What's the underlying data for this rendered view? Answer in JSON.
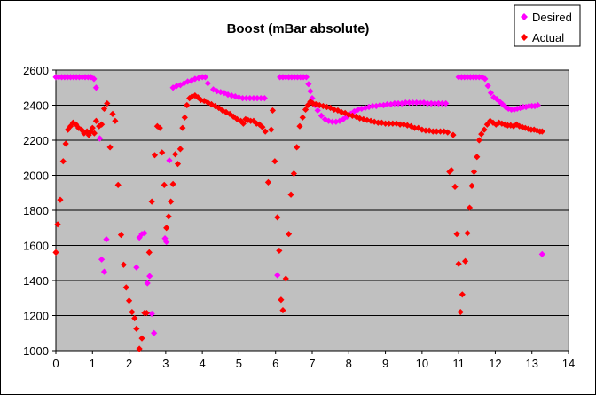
{
  "chart_data": {
    "type": "scatter",
    "title": "Boost (mBar absolute)",
    "xlabel": "",
    "ylabel": "",
    "xlim": [
      0,
      14
    ],
    "ylim": [
      1000,
      2600
    ],
    "x_ticks": [
      0,
      1,
      2,
      3,
      4,
      5,
      6,
      7,
      8,
      9,
      10,
      11,
      12,
      13,
      14
    ],
    "y_ticks": [
      1000,
      1200,
      1400,
      1600,
      1800,
      2000,
      2200,
      2400,
      2600
    ],
    "grid": "horizontal",
    "plot_background": "#c0c0c0",
    "legend_placement": "top-right",
    "series": [
      {
        "name": "Desired",
        "color": "#ff00ff",
        "marker": "diamond",
        "points": [
          [
            0.0,
            2560
          ],
          [
            0.08,
            2560
          ],
          [
            0.16,
            2560
          ],
          [
            0.24,
            2560
          ],
          [
            0.32,
            2560
          ],
          [
            0.4,
            2560
          ],
          [
            0.48,
            2560
          ],
          [
            0.56,
            2560
          ],
          [
            0.64,
            2560
          ],
          [
            0.72,
            2560
          ],
          [
            0.8,
            2560
          ],
          [
            0.88,
            2560
          ],
          [
            0.96,
            2560
          ],
          [
            1.04,
            2550
          ],
          [
            1.1,
            2500
          ],
          [
            1.2,
            2210
          ],
          [
            1.25,
            1520
          ],
          [
            1.32,
            1450
          ],
          [
            1.38,
            1635
          ],
          [
            2.2,
            1475
          ],
          [
            2.28,
            1645
          ],
          [
            2.35,
            1665
          ],
          [
            2.42,
            1670
          ],
          [
            2.5,
            1385
          ],
          [
            2.56,
            1425
          ],
          [
            2.62,
            1210
          ],
          [
            2.68,
            1100
          ],
          [
            2.98,
            1640
          ],
          [
            3.02,
            1620
          ],
          [
            3.1,
            2085
          ],
          [
            3.2,
            2500
          ],
          [
            3.3,
            2510
          ],
          [
            3.4,
            2515
          ],
          [
            3.5,
            2525
          ],
          [
            3.6,
            2535
          ],
          [
            3.7,
            2540
          ],
          [
            3.8,
            2550
          ],
          [
            3.9,
            2555
          ],
          [
            4.0,
            2560
          ],
          [
            4.08,
            2560
          ],
          [
            4.15,
            2525
          ],
          [
            4.3,
            2490
          ],
          [
            4.4,
            2480
          ],
          [
            4.5,
            2475
          ],
          [
            4.6,
            2470
          ],
          [
            4.7,
            2460
          ],
          [
            4.8,
            2455
          ],
          [
            4.9,
            2450
          ],
          [
            5.0,
            2445
          ],
          [
            5.1,
            2440
          ],
          [
            5.2,
            2440
          ],
          [
            5.3,
            2440
          ],
          [
            5.4,
            2440
          ],
          [
            5.5,
            2440
          ],
          [
            5.6,
            2440
          ],
          [
            5.7,
            2440
          ],
          [
            6.05,
            1430
          ],
          [
            6.12,
            2560
          ],
          [
            6.2,
            2560
          ],
          [
            6.28,
            2560
          ],
          [
            6.36,
            2560
          ],
          [
            6.44,
            2560
          ],
          [
            6.52,
            2560
          ],
          [
            6.6,
            2560
          ],
          [
            6.68,
            2560
          ],
          [
            6.76,
            2560
          ],
          [
            6.84,
            2560
          ],
          [
            6.9,
            2520
          ],
          [
            6.95,
            2480
          ],
          [
            7.0,
            2440
          ],
          [
            7.08,
            2400
          ],
          [
            7.15,
            2370
          ],
          [
            7.25,
            2340
          ],
          [
            7.35,
            2320
          ],
          [
            7.45,
            2310
          ],
          [
            7.55,
            2305
          ],
          [
            7.65,
            2305
          ],
          [
            7.75,
            2310
          ],
          [
            7.85,
            2320
          ],
          [
            7.95,
            2335
          ],
          [
            8.05,
            2350
          ],
          [
            8.15,
            2365
          ],
          [
            8.25,
            2375
          ],
          [
            8.35,
            2380
          ],
          [
            8.45,
            2385
          ],
          [
            8.55,
            2390
          ],
          [
            8.65,
            2395
          ],
          [
            8.75,
            2395
          ],
          [
            8.85,
            2400
          ],
          [
            8.95,
            2400
          ],
          [
            9.05,
            2405
          ],
          [
            9.15,
            2405
          ],
          [
            9.25,
            2410
          ],
          [
            9.35,
            2410
          ],
          [
            9.45,
            2410
          ],
          [
            9.55,
            2415
          ],
          [
            9.65,
            2415
          ],
          [
            9.75,
            2415
          ],
          [
            9.85,
            2415
          ],
          [
            9.95,
            2415
          ],
          [
            10.05,
            2415
          ],
          [
            10.15,
            2410
          ],
          [
            10.25,
            2410
          ],
          [
            10.35,
            2410
          ],
          [
            10.45,
            2410
          ],
          [
            10.55,
            2410
          ],
          [
            10.65,
            2410
          ],
          [
            11.0,
            2560
          ],
          [
            11.08,
            2560
          ],
          [
            11.16,
            2560
          ],
          [
            11.24,
            2560
          ],
          [
            11.32,
            2560
          ],
          [
            11.4,
            2560
          ],
          [
            11.48,
            2560
          ],
          [
            11.56,
            2560
          ],
          [
            11.64,
            2560
          ],
          [
            11.72,
            2550
          ],
          [
            11.8,
            2510
          ],
          [
            11.88,
            2470
          ],
          [
            11.96,
            2445
          ],
          [
            12.04,
            2435
          ],
          [
            12.12,
            2420
          ],
          [
            12.2,
            2405
          ],
          [
            12.28,
            2390
          ],
          [
            12.36,
            2380
          ],
          [
            12.44,
            2375
          ],
          [
            12.52,
            2375
          ],
          [
            12.6,
            2380
          ],
          [
            12.68,
            2385
          ],
          [
            12.76,
            2390
          ],
          [
            12.84,
            2390
          ],
          [
            12.92,
            2395
          ],
          [
            13.0,
            2395
          ],
          [
            13.08,
            2395
          ],
          [
            13.16,
            2400
          ],
          [
            13.28,
            1550
          ]
        ]
      },
      {
        "name": "Actual",
        "color": "#ff0000",
        "marker": "diamond",
        "points": [
          [
            0.0,
            1560
          ],
          [
            0.05,
            1720
          ],
          [
            0.12,
            1860
          ],
          [
            0.2,
            2080
          ],
          [
            0.27,
            2180
          ],
          [
            0.33,
            2260
          ],
          [
            0.4,
            2280
          ],
          [
            0.47,
            2300
          ],
          [
            0.55,
            2290
          ],
          [
            0.62,
            2270
          ],
          [
            0.7,
            2260
          ],
          [
            0.77,
            2240
          ],
          [
            0.85,
            2250
          ],
          [
            0.9,
            2230
          ],
          [
            0.95,
            2250
          ],
          [
            1.0,
            2270
          ],
          [
            1.05,
            2240
          ],
          [
            1.1,
            2310
          ],
          [
            1.18,
            2280
          ],
          [
            1.25,
            2290
          ],
          [
            1.32,
            2380
          ],
          [
            1.4,
            2410
          ],
          [
            1.48,
            2160
          ],
          [
            1.55,
            2350
          ],
          [
            1.62,
            2310
          ],
          [
            1.7,
            1945
          ],
          [
            1.78,
            1660
          ],
          [
            1.85,
            1490
          ],
          [
            1.92,
            1360
          ],
          [
            2.0,
            1285
          ],
          [
            2.08,
            1220
          ],
          [
            2.15,
            1185
          ],
          [
            2.2,
            1125
          ],
          [
            2.28,
            1010
          ],
          [
            2.35,
            1070
          ],
          [
            2.42,
            1215
          ],
          [
            2.48,
            1215
          ],
          [
            2.55,
            1560
          ],
          [
            2.62,
            1850
          ],
          [
            2.7,
            2115
          ],
          [
            2.77,
            2280
          ],
          [
            2.84,
            2270
          ],
          [
            2.9,
            2130
          ],
          [
            2.96,
            1945
          ],
          [
            3.02,
            1700
          ],
          [
            3.08,
            1765
          ],
          [
            3.14,
            1850
          ],
          [
            3.2,
            1950
          ],
          [
            3.26,
            2120
          ],
          [
            3.33,
            2065
          ],
          [
            3.4,
            2150
          ],
          [
            3.46,
            2270
          ],
          [
            3.52,
            2330
          ],
          [
            3.58,
            2400
          ],
          [
            3.65,
            2440
          ],
          [
            3.72,
            2450
          ],
          [
            3.8,
            2455
          ],
          [
            3.88,
            2445
          ],
          [
            3.96,
            2430
          ],
          [
            4.05,
            2425
          ],
          [
            4.15,
            2415
          ],
          [
            4.25,
            2405
          ],
          [
            4.35,
            2395
          ],
          [
            4.45,
            2385
          ],
          [
            4.55,
            2370
          ],
          [
            4.65,
            2360
          ],
          [
            4.75,
            2350
          ],
          [
            4.85,
            2335
          ],
          [
            4.95,
            2320
          ],
          [
            5.05,
            2310
          ],
          [
            5.12,
            2295
          ],
          [
            5.18,
            2320
          ],
          [
            5.25,
            2315
          ],
          [
            5.32,
            2310
          ],
          [
            5.4,
            2310
          ],
          [
            5.48,
            2295
          ],
          [
            5.56,
            2290
          ],
          [
            5.64,
            2275
          ],
          [
            5.72,
            2250
          ],
          [
            5.8,
            1960
          ],
          [
            5.88,
            2260
          ],
          [
            5.92,
            2370
          ],
          [
            5.98,
            2080
          ],
          [
            6.05,
            1760
          ],
          [
            6.1,
            1570
          ],
          [
            6.15,
            1290
          ],
          [
            6.2,
            1230
          ],
          [
            6.28,
            1410
          ],
          [
            6.36,
            1665
          ],
          [
            6.42,
            1890
          ],
          [
            6.5,
            2010
          ],
          [
            6.58,
            2160
          ],
          [
            6.66,
            2280
          ],
          [
            6.74,
            2330
          ],
          [
            6.82,
            2375
          ],
          [
            6.88,
            2400
          ],
          [
            6.95,
            2420
          ],
          [
            7.02,
            2410
          ],
          [
            7.1,
            2405
          ],
          [
            7.2,
            2400
          ],
          [
            7.3,
            2395
          ],
          [
            7.4,
            2390
          ],
          [
            7.5,
            2385
          ],
          [
            7.6,
            2375
          ],
          [
            7.7,
            2370
          ],
          [
            7.8,
            2360
          ],
          [
            7.9,
            2355
          ],
          [
            8.0,
            2345
          ],
          [
            8.1,
            2340
          ],
          [
            8.2,
            2335
          ],
          [
            8.3,
            2325
          ],
          [
            8.4,
            2320
          ],
          [
            8.5,
            2315
          ],
          [
            8.6,
            2310
          ],
          [
            8.7,
            2305
          ],
          [
            8.8,
            2300
          ],
          [
            8.9,
            2300
          ],
          [
            9.0,
            2295
          ],
          [
            9.1,
            2295
          ],
          [
            9.2,
            2295
          ],
          [
            9.3,
            2295
          ],
          [
            9.4,
            2290
          ],
          [
            9.5,
            2290
          ],
          [
            9.6,
            2285
          ],
          [
            9.7,
            2280
          ],
          [
            9.8,
            2270
          ],
          [
            9.9,
            2270
          ],
          [
            10.0,
            2260
          ],
          [
            10.1,
            2255
          ],
          [
            10.2,
            2255
          ],
          [
            10.3,
            2250
          ],
          [
            10.4,
            2250
          ],
          [
            10.5,
            2250
          ],
          [
            10.6,
            2250
          ],
          [
            10.7,
            2245
          ],
          [
            10.75,
            2020
          ],
          [
            10.8,
            2030
          ],
          [
            10.85,
            2230
          ],
          [
            10.9,
            1935
          ],
          [
            10.95,
            1665
          ],
          [
            11.0,
            1495
          ],
          [
            11.05,
            1220
          ],
          [
            11.1,
            1320
          ],
          [
            11.18,
            1510
          ],
          [
            11.24,
            1670
          ],
          [
            11.3,
            1815
          ],
          [
            11.36,
            1940
          ],
          [
            11.42,
            2020
          ],
          [
            11.5,
            2105
          ],
          [
            11.56,
            2200
          ],
          [
            11.62,
            2235
          ],
          [
            11.7,
            2260
          ],
          [
            11.78,
            2290
          ],
          [
            11.86,
            2310
          ],
          [
            11.94,
            2300
          ],
          [
            12.02,
            2290
          ],
          [
            12.1,
            2300
          ],
          [
            12.18,
            2295
          ],
          [
            12.26,
            2290
          ],
          [
            12.34,
            2285
          ],
          [
            12.42,
            2285
          ],
          [
            12.5,
            2280
          ],
          [
            12.58,
            2290
          ],
          [
            12.66,
            2280
          ],
          [
            12.74,
            2275
          ],
          [
            12.82,
            2270
          ],
          [
            12.9,
            2265
          ],
          [
            12.98,
            2260
          ],
          [
            13.06,
            2260
          ],
          [
            13.14,
            2255
          ],
          [
            13.22,
            2250
          ],
          [
            13.28,
            2250
          ]
        ]
      }
    ]
  }
}
